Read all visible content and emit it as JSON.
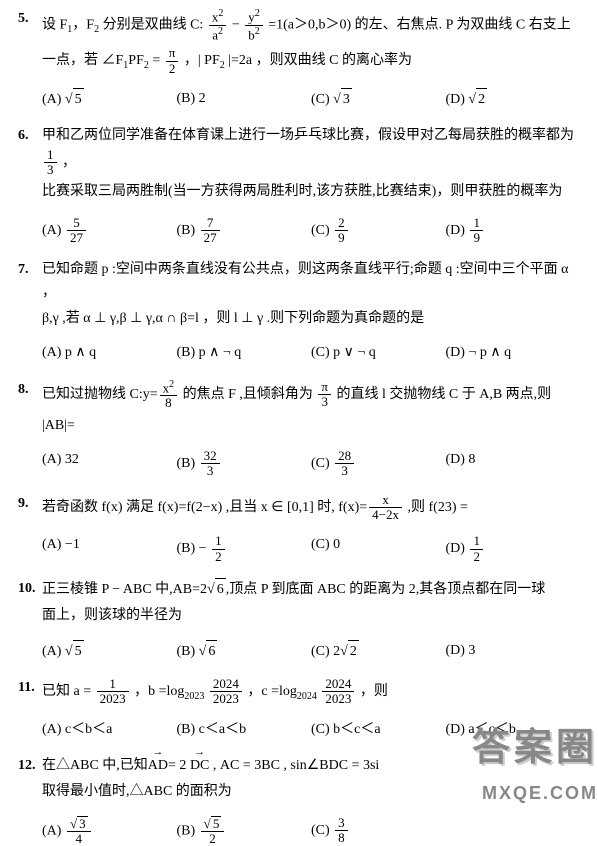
{
  "questions": [
    {
      "num": "5.",
      "lines": [
        "设 F<sub>1</sub>，F<sub>2</sub> 分别是双曲线 C:&nbsp;<span class='frac'><span class='num'>x<sup>2</sup></span><span class='den'>a<sup>2</sup></span></span> − <span class='frac'><span class='num'>y<sup>2</sup></span><span class='den'>b<sup>2</sup></span></span> =1(a＞0,b＞0) 的左、右焦点. P 为双曲线 C 右支上",
        "一点，若 ∠F<sub>1</sub>PF<sub>2</sub> = <span class='frac'><span class='num'>π</span><span class='den'>2</span></span> ，|&nbsp;PF<sub>2</sub>&nbsp;|=2a ，则双曲线 C 的离心率为"
      ],
      "options": [
        "(A) √<span class='sqrt'>5</span>",
        "(B) 2",
        "(C) √<span class='sqrt'>3</span>",
        "(D) √<span class='sqrt'>2</span>"
      ]
    },
    {
      "num": "6.",
      "lines": [
        "甲和乙两位同学准备在体育课上进行一场乒乓球比赛，假设甲对乙每局获胜的概率都为 <span class='frac'><span class='num'>1</span><span class='den'>3</span></span> ，",
        "比赛采取三局两胜制(当一方获得两局胜利时,该方获胜,比赛结束)，则甲获胜的概率为"
      ],
      "options": [
        "(A) <span class='frac'><span class='num'>5</span><span class='den'>27</span></span>",
        "(B) <span class='frac'><span class='num'>7</span><span class='den'>27</span></span>",
        "(C) <span class='frac'><span class='num'>2</span><span class='den'>9</span></span>",
        "(D) <span class='frac'><span class='num'>1</span><span class='den'>9</span></span>"
      ]
    },
    {
      "num": "7.",
      "lines": [
        "已知命题 p :空间中两条直线没有公共点，则这两条直线平行;命题 q :空间中三个平面 α ，",
        "β,γ ,若 α ⊥ γ,β ⊥ γ,α ∩ β=l ，则 l ⊥ γ .则下列命题为真命题的是"
      ],
      "options": [
        "(A) p ∧ q",
        "(B) p ∧ ¬ q",
        "(C) p ∨ ¬ q",
        "(D) ¬ p ∧ q"
      ]
    },
    {
      "num": "8.",
      "lines": [
        "已知过抛物线 C:y=<span class='frac'><span class='num'>x<sup>2</sup></span><span class='den'>8</span></span> 的焦点 F ,且倾斜角为 <span class='frac'><span class='num'>π</span><span class='den'>3</span></span> 的直线 l 交抛物线 C 于 A,B 两点,则",
        "|AB|="
      ],
      "options": [
        "(A) 32",
        "(B) <span class='frac'><span class='num'>32</span><span class='den'>3</span></span>",
        "(C) <span class='frac'><span class='num'>28</span><span class='den'>3</span></span>",
        "(D) 8"
      ]
    },
    {
      "num": "9.",
      "lines": [
        "若奇函数 f(x) 满足 f(x)=f(2−x) ,且当 x ∈ [0,1] 时, f(x)=<span class='frac'><span class='num'>x</span><span class='den'>4−2x</span></span> ,则 f(23) ="
      ],
      "options": [
        "(A) −1",
        "(B) − <span class='frac'><span class='num'>1</span><span class='den'>2</span></span>",
        "(C) 0",
        "(D) <span class='frac'><span class='num'>1</span><span class='den'>2</span></span>"
      ]
    },
    {
      "num": "10.",
      "lines": [
        "正三棱锥 P − ABC 中,AB=2√<span class='sqrt'>6</span>,顶点 P 到底面 ABC 的距离为 2,其各顶点都在同一球",
        "面上，则该球的半径为"
      ],
      "options": [
        "(A) √<span class='sqrt'>5</span>",
        "(B) √<span class='sqrt'>6</span>",
        "(C) 2√<span class='sqrt'>2</span>",
        "(D) 3"
      ]
    },
    {
      "num": "11.",
      "lines": [
        "已知 a = <span class='frac'><span class='num'>1</span><span class='den'>2023</span></span> ，b =log<sub>2023</sub>&nbsp;<span class='frac'><span class='num'>2024</span><span class='den'>2023</span></span> ，c =log<sub>2024</sub>&nbsp;<span class='frac'><span class='num'>2024</span><span class='den'>2023</span></span> ，则"
      ],
      "options": [
        "(A) c＜b＜a",
        "(B) c＜a＜b",
        "(C) b＜c＜a",
        "(D) a＜c＜b"
      ]
    },
    {
      "num": "12.",
      "lines": [
        "在△ABC 中,已知<span class='vec'>AD</span>= 2 <span class='vec'>DC</span> , AC = 3BC , sin∠BDC = 3si",
        "取得最小值时,△ABC 的面积为"
      ],
      "options": [
        "(A) <span class='frac'><span class='num'>√<span class='sqrt'>3</span></span><span class='den'>4</span></span>",
        "(B) <span class='frac'><span class='num'>√<span class='sqrt'>5</span></span><span class='den'>2</span></span>",
        "(C) <span class='frac'><span class='num'>3</span><span class='den'>8</span></span>",
        ""
      ]
    }
  ],
  "watermark": {
    "big": "答案圈",
    "small": "MXQE.COM"
  },
  "colors": {
    "text": "#000000",
    "background": "#ffffff",
    "watermark": "#888888"
  }
}
